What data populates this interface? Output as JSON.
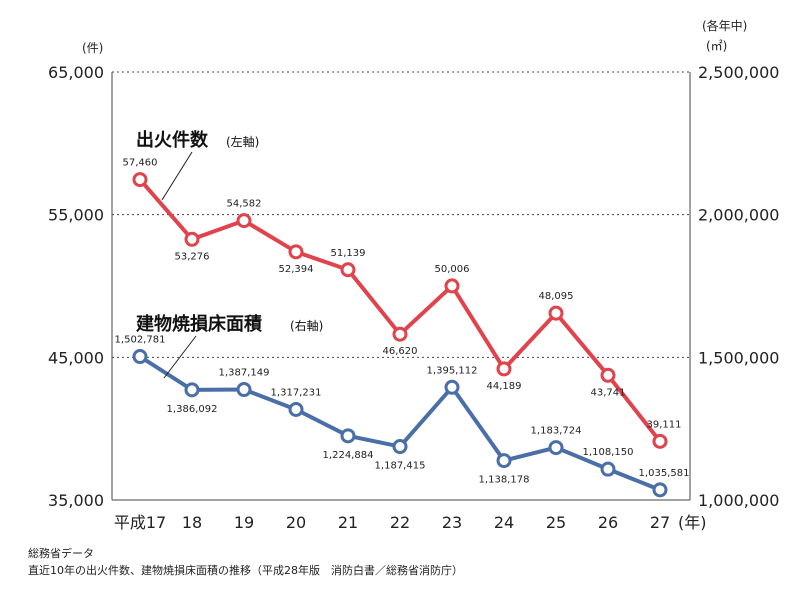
{
  "chart_data": {
    "type": "line",
    "x_unit": "(年)",
    "categories": [
      "平成17",
      "18",
      "19",
      "20",
      "21",
      "22",
      "23",
      "24",
      "25",
      "26",
      "27"
    ],
    "left_axis": {
      "unit": "(件)",
      "ylim": [
        35000,
        65000
      ],
      "ticks": [
        "35,000",
        "45,000",
        "55,000",
        "65,000"
      ]
    },
    "right_axis": {
      "unit_top": "(各年中)",
      "unit": "(㎡)",
      "ylim": [
        1000000,
        2500000
      ],
      "ticks": [
        "1,000,000",
        "1,500,000",
        "2,000,000",
        "2,500,000"
      ]
    },
    "grid": "horizontal-dashed",
    "series": [
      {
        "name": "出火件数",
        "axis_note": "(左軸)",
        "axis": "left",
        "color": "#e0434b",
        "values": [
          57460,
          53276,
          54582,
          52394,
          51139,
          46620,
          50006,
          44189,
          48095,
          43741,
          39111
        ],
        "labels": [
          "57,460",
          "53,276",
          "54,582",
          "52,394",
          "51,139",
          "46,620",
          "50,006",
          "44,189",
          "48,095",
          "43,741",
          "39,111"
        ]
      },
      {
        "name": "建物焼損床面積",
        "axis_note": "(右軸)",
        "axis": "right",
        "color": "#4a6fa8",
        "values": [
          1502781,
          1386092,
          1387149,
          1317231,
          1224884,
          1187415,
          1395112,
          1138178,
          1183724,
          1108150,
          1035581
        ],
        "labels": [
          "1,502,781",
          "1,386,092",
          "1,387,149",
          "1,317,231",
          "1,224,884",
          "1,187,415",
          "1,395,112",
          "1,138,178",
          "1,183,724",
          "1,108,150",
          "1,035,581"
        ]
      }
    ]
  },
  "footer": {
    "source": "総務省データ",
    "caption": "直近10年の出火件数、建物焼損床面積の推移（平成28年版　消防白書／総務省消防庁）"
  }
}
